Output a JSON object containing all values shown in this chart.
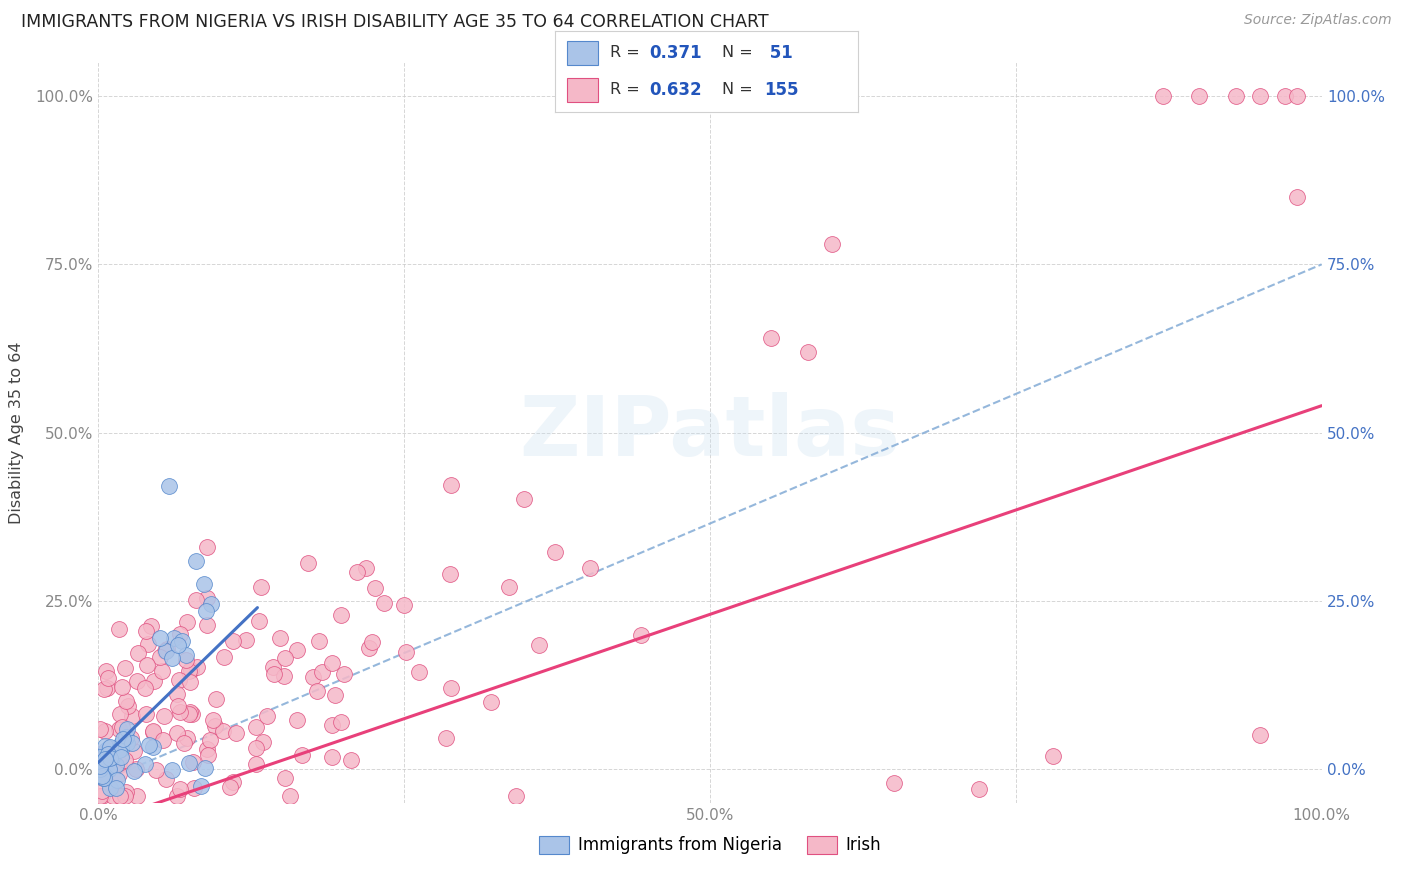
{
  "title": "IMMIGRANTS FROM NIGERIA VS IRISH DISABILITY AGE 35 TO 64 CORRELATION CHART",
  "source": "Source: ZipAtlas.com",
  "ylabel": "Disability Age 35 to 64",
  "xlim": [
    0.0,
    1.0
  ],
  "ylim": [
    -0.05,
    1.05
  ],
  "xticks": [
    0.0,
    0.25,
    0.5,
    0.75,
    1.0
  ],
  "yticks": [
    0.0,
    0.25,
    0.5,
    0.75,
    1.0
  ],
  "xticklabels": [
    "0.0%",
    "",
    "50.0%",
    "",
    "100.0%"
  ],
  "yticklabels": [
    "0.0%",
    "25.0%",
    "50.0%",
    "75.0%",
    "100.0%"
  ],
  "nigeria_R": 0.371,
  "nigeria_N": 51,
  "irish_R": 0.632,
  "irish_N": 155,
  "nigeria_color": "#aac4e8",
  "irish_color": "#f5b8c8",
  "nigeria_edge_color": "#5588cc",
  "irish_edge_color": "#e05080",
  "nigeria_line_color": "#4472c4",
  "irish_line_color": "#e8407a",
  "dashed_line_color": "#8ab0d8",
  "watermark": "ZIPatlas",
  "background_color": "#ffffff",
  "grid_color": "#cccccc",
  "title_color": "#222222",
  "right_ytick_color": "#4472c4",
  "left_ytick_color": "#888888",
  "tick_label_color": "#888888",
  "nigeria_seed": 42,
  "irish_seed": 7
}
